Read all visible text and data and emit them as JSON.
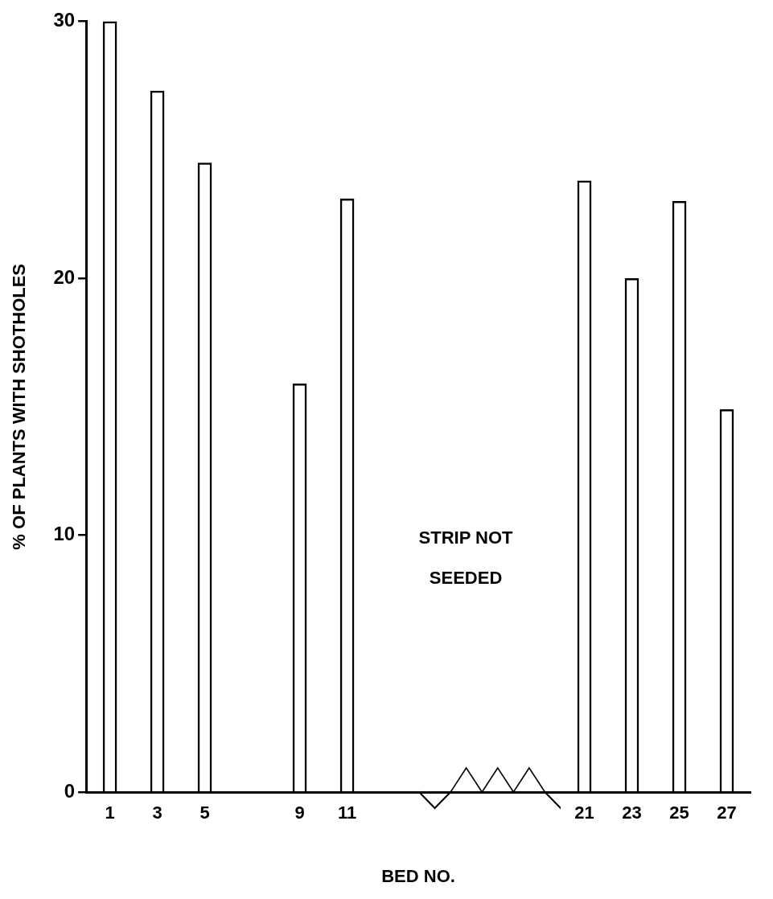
{
  "chart_data": {
    "type": "bar",
    "xlabel": "BED NO.",
    "ylabel": "% OF PLANTS WITH SHOTHOLES",
    "categories": [
      "1",
      "3",
      "5",
      null,
      "9",
      "11",
      null,
      null,
      null,
      null,
      "21",
      "23",
      "25",
      "27"
    ],
    "values": [
      30,
      27.3,
      24.5,
      null,
      15.9,
      23.1,
      null,
      null,
      null,
      null,
      23.8,
      20.0,
      23.0,
      14.9
    ],
    "color": "#000000",
    "ylim": [
      0,
      30
    ],
    "yticks": [
      0,
      10,
      20,
      30
    ],
    "grid": false,
    "annotations": [
      "STRIP NOT SEEDED"
    ]
  }
}
